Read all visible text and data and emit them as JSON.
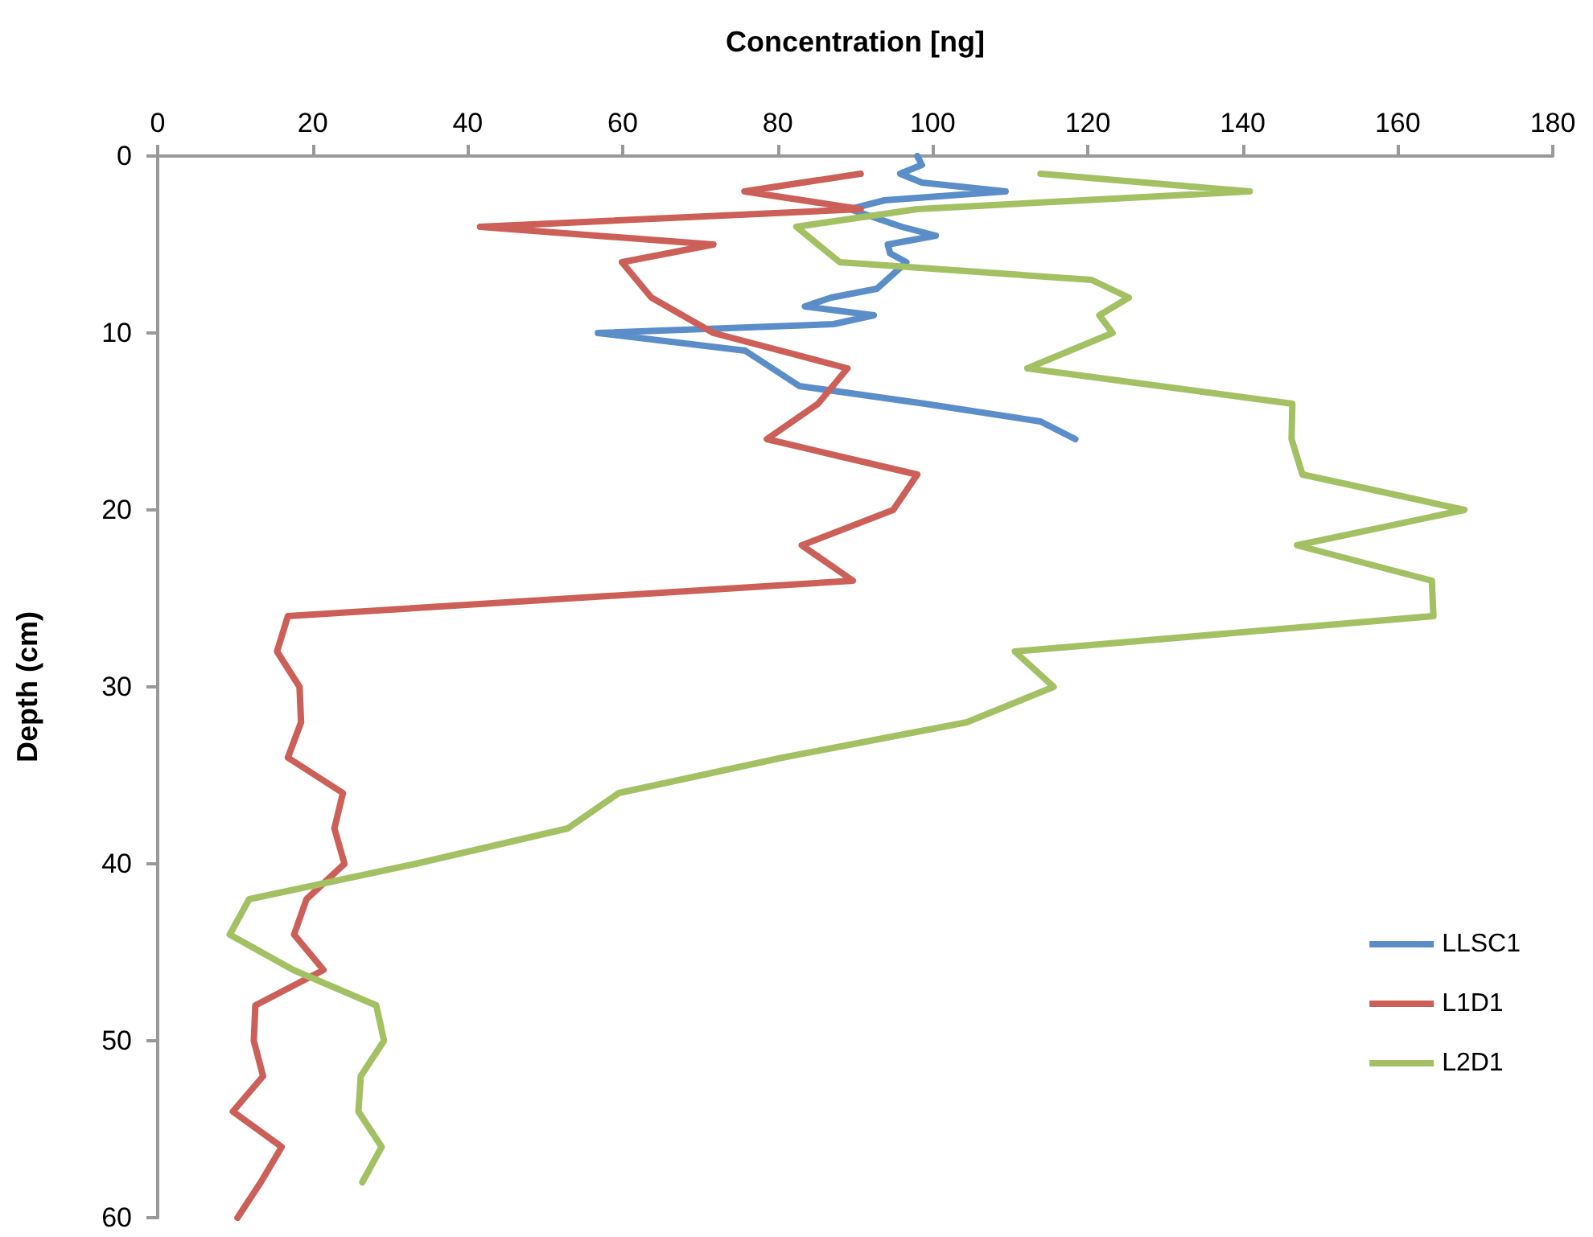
{
  "chart_data": {
    "type": "line",
    "xlabel": "Concentration [ng]",
    "ylabel": "Depth (cm)",
    "xlim": [
      0,
      180
    ],
    "xticks": [
      0,
      20,
      40,
      60,
      80,
      100,
      120,
      140,
      160,
      180
    ],
    "ylim": [
      60,
      0
    ],
    "yticks": [
      0,
      10,
      20,
      30,
      40,
      50,
      60
    ],
    "grid": false,
    "legend": "bottom right",
    "marker": "none",
    "line_style": "solid",
    "series": [
      {
        "name": "LLSC1",
        "color": "#5b8ec8",
        "x": [
          98.0,
          98.6,
          95.8,
          98.6,
          109.4,
          93.8,
          89.3,
          96.0,
          100.4,
          94.2,
          94.5,
          96.6,
          92.8,
          86.9,
          83.5,
          92.4,
          87.2,
          56.8,
          75.8,
          82.8,
          99.0,
          113.9,
          118.4
        ],
        "values": [
          0,
          0.5,
          1,
          1.5,
          2,
          2.5,
          3,
          4,
          4.5,
          5,
          5.5,
          6,
          7.5,
          8,
          8.5,
          9,
          9.5,
          10,
          11,
          13,
          14,
          15,
          16
        ]
      },
      {
        "name": "L1D1",
        "color": "#cc5f57",
        "x": [
          90.7,
          75.7,
          90.7,
          41.6,
          71.7,
          59.9,
          63.7,
          71.7,
          89.0,
          85.2,
          78.6,
          98.0,
          94.9,
          83.1,
          89.7,
          16.8,
          15.4,
          18.3,
          18.5,
          16.8,
          23.9,
          22.8,
          24.1,
          19.2,
          17.6,
          21.4,
          12.6,
          12.4,
          13.6,
          9.7,
          16.0,
          13.3,
          10.3
        ],
        "values": [
          1,
          2,
          3,
          4,
          5,
          6,
          8,
          10,
          12,
          14,
          16,
          18,
          20,
          22,
          24,
          26,
          28,
          30,
          32,
          34,
          36,
          38,
          40,
          42,
          44,
          46,
          48,
          50,
          52,
          54,
          56,
          58,
          60
        ]
      },
      {
        "name": "L2D1",
        "color": "#a3c163",
        "x": [
          113.9,
          140.9,
          98.0,
          82.4,
          88.0,
          120.5,
          125.3,
          121.5,
          123.2,
          112.2,
          146.4,
          146.3,
          147.7,
          168.6,
          147.0,
          164.4,
          164.6,
          110.6,
          115.6,
          104.4,
          80.6,
          59.5,
          52.9,
          33.3,
          11.8,
          9.3,
          17.5,
          28.2,
          29.2,
          26.2,
          25.9,
          28.9,
          26.4
        ],
        "values": [
          1,
          2,
          3,
          4,
          6,
          7,
          8,
          9,
          10,
          12,
          14,
          16,
          18,
          20,
          22,
          24,
          26,
          28,
          30,
          32,
          34,
          36,
          38,
          40,
          42,
          44,
          46,
          48,
          50,
          52,
          54,
          56,
          58
        ]
      }
    ]
  }
}
